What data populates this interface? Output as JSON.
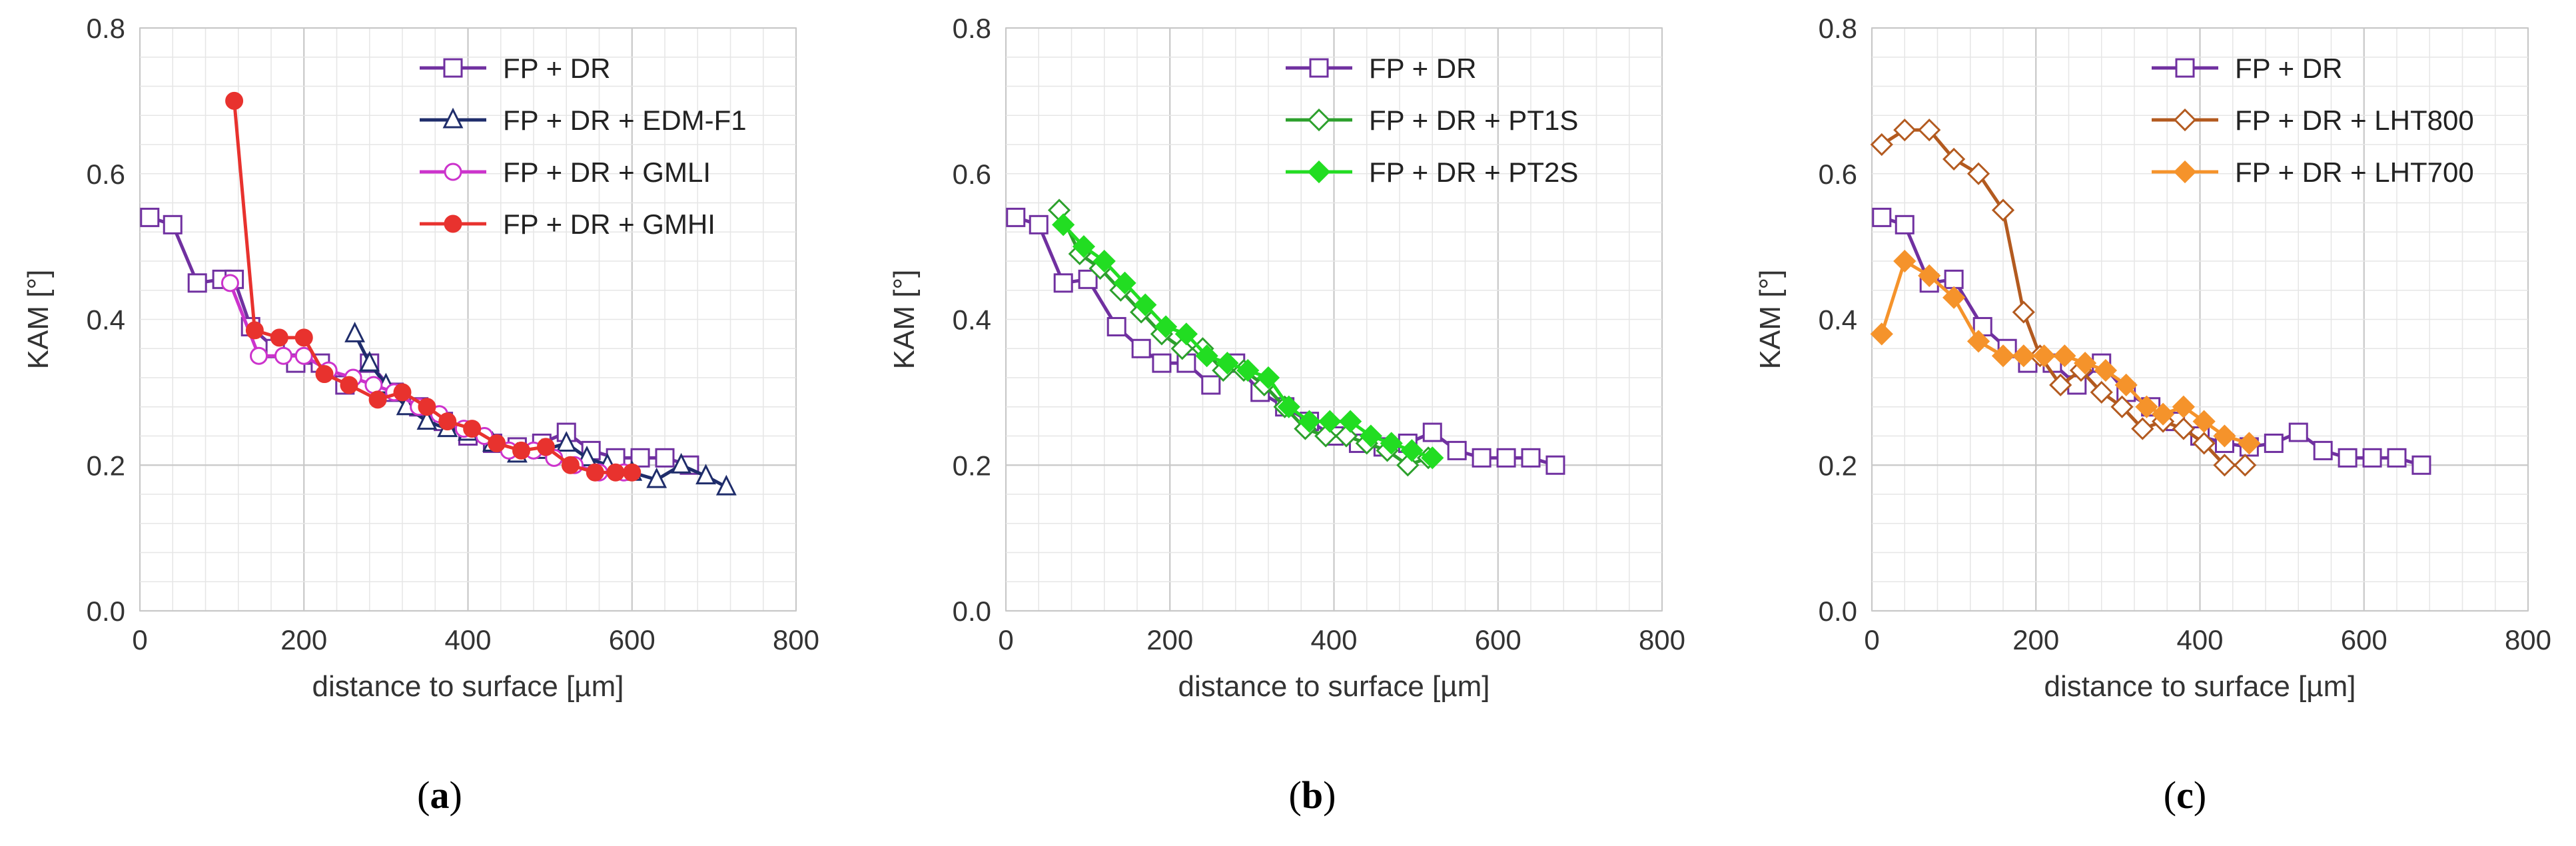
{
  "chart_data": [
    {
      "type": "line",
      "panel": "a",
      "caption_prefix": "(",
      "caption_letter": "a",
      "caption_suffix": ")",
      "xlabel": "distance to surface [µm]",
      "ylabel": "KAM [°]",
      "xlim": [
        0,
        800
      ],
      "ylim": [
        0,
        0.8
      ],
      "xticks": [
        "0",
        "200",
        "400",
        "600",
        "800"
      ],
      "yticks": [
        "0.0",
        "0.2",
        "0.4",
        "0.6",
        "0.8"
      ],
      "grid": true,
      "legend_position": "top-right",
      "series": [
        {
          "name": "FP + DR",
          "color": "#7030a0",
          "marker": "square-open",
          "x": [
            12,
            40,
            70,
            100,
            115,
            135,
            165,
            190,
            220,
            250,
            280,
            310,
            340,
            370,
            400,
            430,
            460,
            490,
            520,
            550,
            580,
            610,
            640,
            670
          ],
          "y": [
            0.54,
            0.53,
            0.45,
            0.455,
            0.455,
            0.39,
            0.36,
            0.34,
            0.34,
            0.31,
            0.34,
            0.3,
            0.28,
            0.26,
            0.24,
            0.23,
            0.225,
            0.23,
            0.245,
            0.22,
            0.21,
            0.21,
            0.21,
            0.2
          ]
        },
        {
          "name": "FP + DR + EDM-F1",
          "color": "#1f2d6b",
          "marker": "triangle-open",
          "x": [
            262,
            280,
            300,
            325,
            350,
            375,
            400,
            430,
            460,
            490,
            520,
            545,
            570,
            600,
            630,
            660,
            690,
            715
          ],
          "y": [
            0.38,
            0.34,
            0.31,
            0.28,
            0.26,
            0.25,
            0.245,
            0.23,
            0.215,
            0.22,
            0.23,
            0.21,
            0.2,
            0.19,
            0.18,
            0.2,
            0.185,
            0.17
          ]
        },
        {
          "name": "FP + DR + GMLI",
          "color": "#cc33cc",
          "marker": "circle-open",
          "x": [
            110,
            145,
            175,
            200,
            230,
            260,
            285,
            310,
            340,
            365,
            395,
            420,
            450,
            480,
            505,
            530,
            560,
            590
          ],
          "y": [
            0.45,
            0.35,
            0.35,
            0.35,
            0.33,
            0.32,
            0.31,
            0.3,
            0.28,
            0.27,
            0.25,
            0.24,
            0.22,
            0.22,
            0.21,
            0.2,
            0.19,
            0.19
          ]
        },
        {
          "name": "FP + DR + GMHI",
          "color": "#e8322e",
          "marker": "circle-filled",
          "x": [
            115,
            140,
            170,
            200,
            225,
            255,
            290,
            320,
            350,
            375,
            405,
            435,
            465,
            495,
            525,
            555,
            580,
            600
          ],
          "y": [
            0.7,
            0.385,
            0.375,
            0.375,
            0.325,
            0.31,
            0.29,
            0.3,
            0.28,
            0.26,
            0.25,
            0.23,
            0.22,
            0.225,
            0.2,
            0.19,
            0.19,
            0.19
          ]
        }
      ]
    },
    {
      "type": "line",
      "panel": "b",
      "caption_prefix": "(",
      "caption_letter": "b",
      "caption_suffix": ")",
      "xlabel": "distance to surface [µm]",
      "ylabel": "KAM [°]",
      "xlim": [
        0,
        800
      ],
      "ylim": [
        0,
        0.8
      ],
      "xticks": [
        "0",
        "200",
        "400",
        "600",
        "800"
      ],
      "yticks": [
        "0.0",
        "0.2",
        "0.4",
        "0.6",
        "0.8"
      ],
      "grid": true,
      "legend_position": "top-right",
      "series": [
        {
          "name": "FP + DR",
          "color": "#7030a0",
          "marker": "square-open",
          "x": [
            12,
            40,
            70,
            100,
            135,
            165,
            190,
            220,
            250,
            280,
            310,
            340,
            370,
            400,
            430,
            460,
            490,
            520,
            550,
            580,
            610,
            640,
            670
          ],
          "y": [
            0.54,
            0.53,
            0.45,
            0.455,
            0.39,
            0.36,
            0.34,
            0.34,
            0.31,
            0.34,
            0.3,
            0.28,
            0.26,
            0.24,
            0.23,
            0.225,
            0.23,
            0.245,
            0.22,
            0.21,
            0.21,
            0.21,
            0.2
          ]
        },
        {
          "name": "FP + DR + PT1S",
          "color": "#2ca02c",
          "marker": "diamond-open",
          "x": [
            65,
            90,
            115,
            140,
            165,
            190,
            215,
            240,
            265,
            290,
            315,
            340,
            365,
            390,
            415,
            440,
            465,
            490,
            515
          ],
          "y": [
            0.55,
            0.49,
            0.47,
            0.44,
            0.41,
            0.38,
            0.36,
            0.36,
            0.33,
            0.33,
            0.31,
            0.28,
            0.25,
            0.24,
            0.24,
            0.23,
            0.22,
            0.2,
            0.21
          ]
        },
        {
          "name": "FP + DR + PT2S",
          "color": "#22dd22",
          "marker": "diamond-filled",
          "x": [
            70,
            95,
            120,
            145,
            170,
            195,
            220,
            245,
            270,
            295,
            320,
            345,
            370,
            395,
            420,
            445,
            470,
            495,
            520
          ],
          "y": [
            0.53,
            0.5,
            0.48,
            0.45,
            0.42,
            0.39,
            0.38,
            0.35,
            0.34,
            0.33,
            0.32,
            0.28,
            0.26,
            0.26,
            0.26,
            0.24,
            0.23,
            0.22,
            0.21
          ]
        }
      ]
    },
    {
      "type": "line",
      "panel": "c",
      "caption_prefix": "(",
      "caption_letter": "c",
      "caption_suffix": ")",
      "xlabel": "distance to surface [µm]",
      "ylabel": "KAM [°]",
      "xlim": [
        0,
        800
      ],
      "ylim": [
        0,
        0.8
      ],
      "xticks": [
        "0",
        "200",
        "400",
        "600",
        "800"
      ],
      "yticks": [
        "0.0",
        "0.2",
        "0.4",
        "0.6",
        "0.8"
      ],
      "grid": true,
      "legend_position": "top-right",
      "series": [
        {
          "name": "FP + DR",
          "color": "#7030a0",
          "marker": "square-open",
          "x": [
            12,
            40,
            70,
            100,
            135,
            165,
            190,
            220,
            250,
            280,
            310,
            340,
            370,
            400,
            430,
            460,
            490,
            520,
            550,
            580,
            610,
            640,
            670
          ],
          "y": [
            0.54,
            0.53,
            0.45,
            0.455,
            0.39,
            0.36,
            0.34,
            0.34,
            0.31,
            0.34,
            0.3,
            0.28,
            0.26,
            0.24,
            0.23,
            0.225,
            0.23,
            0.245,
            0.22,
            0.21,
            0.21,
            0.21,
            0.2
          ]
        },
        {
          "name": "FP + DR + LHT800",
          "color": "#b35a1f",
          "marker": "diamond-open",
          "x": [
            12,
            40,
            70,
            100,
            130,
            160,
            185,
            205,
            230,
            255,
            280,
            305,
            330,
            355,
            380,
            405,
            430,
            455
          ],
          "y": [
            0.64,
            0.66,
            0.66,
            0.62,
            0.6,
            0.55,
            0.41,
            0.35,
            0.31,
            0.33,
            0.3,
            0.28,
            0.25,
            0.26,
            0.25,
            0.23,
            0.2,
            0.2
          ]
        },
        {
          "name": "FP + DR + LHT700",
          "color": "#f5932b",
          "marker": "diamond-filled",
          "x": [
            12,
            40,
            70,
            100,
            130,
            160,
            185,
            210,
            235,
            260,
            285,
            310,
            335,
            355,
            380,
            405,
            430,
            460
          ],
          "y": [
            0.38,
            0.48,
            0.46,
            0.43,
            0.37,
            0.35,
            0.35,
            0.35,
            0.35,
            0.34,
            0.33,
            0.31,
            0.28,
            0.27,
            0.28,
            0.26,
            0.24,
            0.23
          ]
        }
      ]
    }
  ]
}
